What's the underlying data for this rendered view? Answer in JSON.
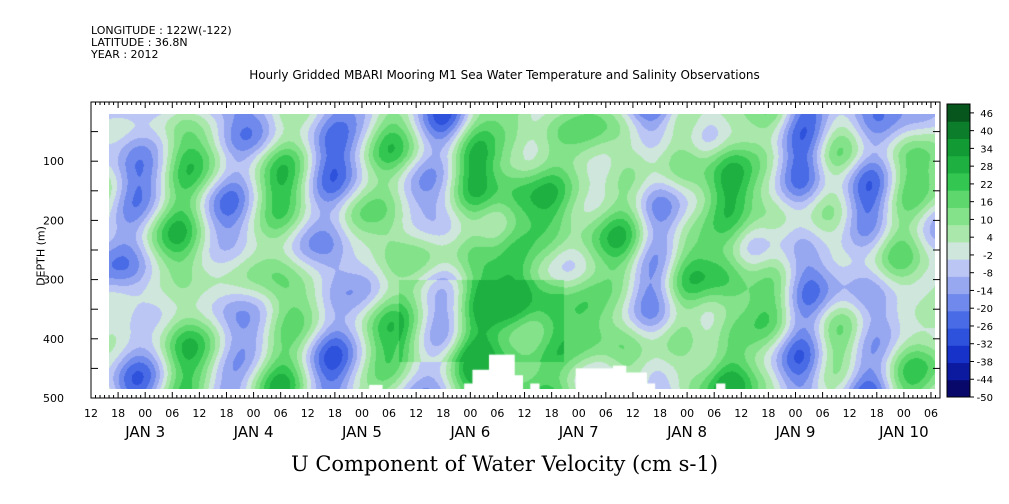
{
  "header": {
    "longitude": "LONGITUDE : 122W(-122)",
    "latitude": "LATITUDE : 36.8N",
    "year": "YEAR : 2012"
  },
  "chart_data": {
    "type": "heatmap",
    "title": "Hourly Gridded MBARI Mooring M1 Sea Water Temperature and Salinity Observations",
    "xlabel": "U Component of Water Velocity (cm s-1)",
    "ylabel": "DEPTH (m)",
    "y_axis": {
      "range": [
        0,
        500
      ],
      "inverted": true,
      "ticks": [
        100,
        200,
        300,
        400,
        500
      ],
      "minor_step": 50
    },
    "x_axis": {
      "range_days": [
        "JAN 2 12:00",
        "JAN 10 08:00"
      ],
      "hour_labels": [
        "12",
        "18",
        "00",
        "06",
        "12",
        "18",
        "00",
        "06",
        "12",
        "18",
        "00",
        "06",
        "12",
        "18",
        "00",
        "06",
        "12",
        "18",
        "00",
        "06",
        "12",
        "18",
        "00",
        "06",
        "12",
        "18",
        "00",
        "06",
        "12",
        "18",
        "00",
        "06"
      ],
      "date_labels": [
        "JAN 3",
        "JAN 4",
        "JAN 5",
        "JAN 6",
        "JAN 7",
        "JAN 8",
        "JAN 9",
        "JAN 10"
      ]
    },
    "data_extent": {
      "start": "JAN 2 16:00",
      "end": "JAN 10 07:00",
      "depth_top": 20,
      "depth_bottom": 485
    },
    "colorbar": {
      "labels": [
        "46",
        "40",
        "34",
        "28",
        "22",
        "16",
        "10",
        "4",
        "-2",
        "-8",
        "-14",
        "-20",
        "-26",
        "-32",
        "-38",
        "-44",
        "-50"
      ],
      "min": -50,
      "max": 49,
      "step": 3,
      "colors_low_to_high": [
        "#08086b",
        "#0c1aa0",
        "#1732c8",
        "#2f52dc",
        "#4a6be6",
        "#6f8aec",
        "#98a8f0",
        "#bcc6f5",
        "#cfe6dc",
        "#a9e8aa",
        "#83e28a",
        "#5ed86c",
        "#33c751",
        "#1eb040",
        "#129a34",
        "#0c7d2a",
        "#06561d"
      ]
    },
    "value_range_observed": [
      -30,
      30
    ],
    "notes": "Dominant pattern: alternating vertical bands of positive (green) and negative (blue) U velocity over the full water column; strongest positive values near 350 m around JAN 5-6."
  }
}
